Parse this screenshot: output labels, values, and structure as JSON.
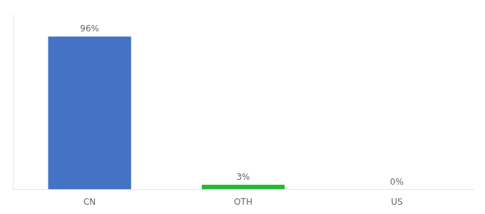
{
  "chart_data": {
    "type": "bar",
    "categories": [
      "CN",
      "OTH",
      "US"
    ],
    "values": [
      96,
      3,
      0
    ],
    "value_labels": [
      "96%",
      "3%",
      "0%"
    ],
    "colors": [
      "#4472C4",
      "#22bb33",
      "#4472C4"
    ],
    "ylim": [
      0,
      110
    ],
    "grid": false,
    "data_labels": true,
    "tick_labels": "x"
  }
}
